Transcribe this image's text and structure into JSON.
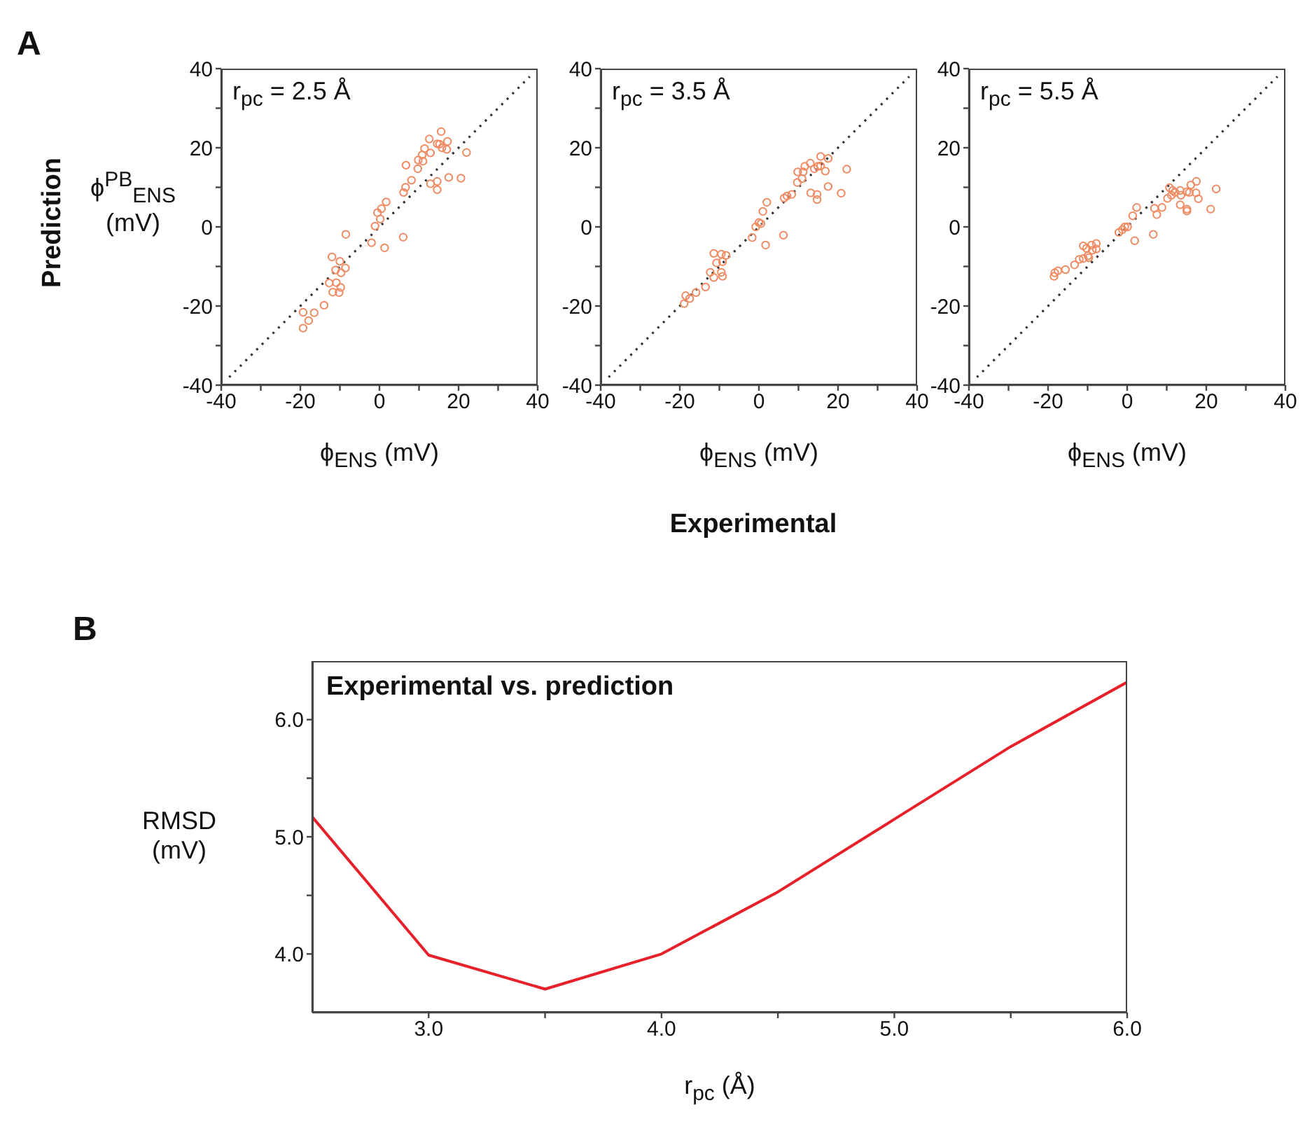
{
  "chart_data": [
    {
      "type": "scatter",
      "xlabel": "ϕ$_{ENS}$ (mV)",
      "ylabel": "ϕ$^{PB}$$_{ENS}$ (mV)",
      "annotations": [
        "A",
        "Prediction",
        "Experimental",
        "r$_{pc}$ = 2.5 Å"
      ],
      "series": [
        {
          "type": "scatter",
          "color": "#f08a62",
          "marker": "circle",
          "x": [
            15.6,
            12.6,
            14.6,
            15.2,
            17.2,
            15.8,
            17.0,
            22.0,
            11.4,
            12.9,
            10.8,
            9.8,
            11.0,
            9.7,
            6.7,
            8.1,
            17.5,
            20.6,
            14.6,
            12.9,
            14.6,
            6.6,
            6.1,
            1.7,
            0.5,
            -0.5,
            0.2,
            -1.1,
            -2.0,
            1.3,
            6.0,
            -8.5,
            -12.0,
            -10.0,
            -8.6,
            -11.1,
            -9.7,
            -10.9,
            -12.7,
            -9.8,
            -11.8,
            -10.2,
            -14.0,
            -19.3,
            -16.5,
            -17.9,
            -19.3
          ],
          "values": [
            24.1,
            22.2,
            21.0,
            20.9,
            21.6,
            20.0,
            19.6,
            18.8,
            19.8,
            18.7,
            18.2,
            16.9,
            16.6,
            14.7,
            15.6,
            11.8,
            12.5,
            12.3,
            11.5,
            10.9,
            9.4,
            10.0,
            8.7,
            6.3,
            4.6,
            3.6,
            2.0,
            0.2,
            -4.0,
            -5.3,
            -2.6,
            -1.9,
            -7.6,
            -8.7,
            -10.4,
            -10.9,
            -11.6,
            -14.1,
            -14.2,
            -15.3,
            -16.5,
            -16.6,
            -19.8,
            -21.6,
            -21.7,
            -23.7,
            -25.6
          ]
        },
        {
          "type": "line",
          "color": "#333333",
          "marker": "none",
          "line_style": "dotted",
          "x": [
            -38,
            38
          ],
          "values": [
            -38,
            38
          ]
        }
      ],
      "xlim": [
        -40,
        40
      ],
      "ylim": [
        -40,
        40
      ],
      "xticks": [
        -40,
        {
          "value": -30,
          "label": null
        },
        -20,
        {
          "value": -10,
          "label": null
        },
        0,
        {
          "value": 10,
          "label": null
        },
        20,
        {
          "value": 30,
          "label": null
        },
        40
      ],
      "yticks": [
        -40,
        {
          "value": -30,
          "label": null
        },
        -20,
        {
          "value": -10,
          "label": null
        },
        0,
        {
          "value": 10,
          "label": null
        },
        20,
        {
          "value": 30,
          "label": null
        },
        40
      ],
      "grid": false,
      "legend": false
    },
    {
      "type": "scatter",
      "xlabel": "ϕ$_{ENS}$ (mV)",
      "annotations": [
        "r$_{pc}$ = 3.5 Å"
      ],
      "series": [
        {
          "type": "scatter",
          "color": "#f08a62",
          "marker": "circle",
          "x": [
            15.6,
            17.5,
            13.0,
            11.6,
            14.9,
            15.6,
            14.0,
            22.2,
            9.8,
            11.2,
            16.8,
            9.7,
            10.9,
            17.5,
            20.8,
            13.1,
            14.7,
            14.7,
            8.3,
            7.1,
            6.4,
            2.0,
            1.0,
            0.0,
            0.5,
            -0.8,
            -1.7,
            6.2,
            1.7,
            -11.4,
            -9.5,
            -8.3,
            -10.7,
            -9.2,
            -12.3,
            -11.4,
            -9.5,
            -9.2,
            -13.5,
            -15.9,
            -18.5,
            -17.5,
            -18.9
          ],
          "values": [
            17.8,
            17.3,
            16.1,
            15.3,
            15.3,
            15.4,
            14.7,
            14.6,
            13.9,
            13.9,
            14.1,
            11.2,
            12.2,
            10.2,
            8.5,
            8.6,
            8.2,
            6.9,
            8.2,
            7.8,
            7.3,
            6.2,
            3.9,
            1.1,
            0.8,
            0.0,
            -2.7,
            -2.1,
            -4.6,
            -6.7,
            -6.9,
            -7.2,
            -9.1,
            -8.8,
            -11.5,
            -12.8,
            -11.5,
            -12.5,
            -15.2,
            -16.6,
            -17.4,
            -18.1,
            -19.4
          ]
        },
        {
          "type": "line",
          "color": "#333333",
          "marker": "none",
          "line_style": "dotted",
          "x": [
            -38,
            38
          ],
          "values": [
            -38,
            38
          ]
        }
      ],
      "xlim": [
        -40,
        40
      ],
      "ylim": [
        -40,
        40
      ],
      "xticks": [
        -40,
        {
          "value": -30,
          "label": null
        },
        -20,
        {
          "value": -10,
          "label": null
        },
        0,
        {
          "value": 10,
          "label": null
        },
        20,
        {
          "value": 30,
          "label": null
        },
        40
      ],
      "yticks": [
        -40,
        {
          "value": -30,
          "label": null
        },
        -20,
        {
          "value": -10,
          "label": null
        },
        0,
        {
          "value": 10,
          "label": null
        },
        20,
        {
          "value": 30,
          "label": null
        },
        40
      ],
      "grid": false,
      "legend": false
    },
    {
      "type": "scatter",
      "xlabel": "ϕ$_{ENS}$ (mV)",
      "annotations": [
        "r$_{pc}$ = 5.5 Å"
      ],
      "series": [
        {
          "type": "scatter",
          "color": "#f08a62",
          "marker": "circle",
          "x": [
            17.5,
            16.1,
            22.5,
            11.5,
            13.4,
            10.7,
            12.1,
            15.1,
            15.7,
            17.4,
            11.2,
            13.6,
            10.2,
            18.0,
            13.4,
            15.1,
            15.1,
            21.1,
            2.4,
            6.9,
            8.8,
            7.5,
            1.4,
            -0.6,
            0.1,
            -1.2,
            -2.1,
            6.6,
            1.9,
            -11.1,
            -9.0,
            -7.8,
            -10.3,
            -8.8,
            -7.8,
            -9.7,
            -11.1,
            -9.9,
            -12.1,
            -13.3,
            -15.6,
            -17.5,
            -18.3,
            -18.5
          ],
          "values": [
            11.5,
            10.6,
            9.6,
            9.2,
            9.2,
            9.9,
            8.7,
            8.9,
            8.7,
            8.6,
            8.0,
            8.0,
            7.2,
            7.1,
            5.6,
            4.5,
            4.0,
            4.5,
            4.9,
            4.7,
            4.9,
            3.1,
            2.8,
            0.0,
            0.0,
            -0.7,
            -1.4,
            -1.9,
            -3.5,
            -4.8,
            -4.6,
            -4.2,
            -5.4,
            -5.9,
            -5.6,
            -7.8,
            -8.0,
            -7.3,
            -8.2,
            -9.6,
            -10.8,
            -11.1,
            -11.6,
            -12.5
          ]
        },
        {
          "type": "line",
          "color": "#333333",
          "marker": "none",
          "line_style": "dotted",
          "x": [
            -38,
            38
          ],
          "values": [
            -38,
            38
          ]
        }
      ],
      "xlim": [
        -40,
        40
      ],
      "ylim": [
        -40,
        40
      ],
      "xticks": [
        -40,
        {
          "value": -30,
          "label": null
        },
        -20,
        {
          "value": -10,
          "label": null
        },
        0,
        {
          "value": 10,
          "label": null
        },
        20,
        {
          "value": 30,
          "label": null
        },
        40
      ],
      "yticks": [
        -40,
        {
          "value": -30,
          "label": null
        },
        -20,
        {
          "value": -10,
          "label": null
        },
        0,
        {
          "value": 10,
          "label": null
        },
        20,
        {
          "value": 30,
          "label": null
        },
        40
      ],
      "grid": false,
      "legend": false
    },
    {
      "type": "line",
      "title": "Experimental vs. prediction",
      "xlabel": "r$_{pc}$ (Å)",
      "ylabel": "RMSD (mV)",
      "annotations": [
        "B"
      ],
      "x": [
        2.5,
        3.0,
        3.5,
        4.0,
        4.5,
        5.0,
        5.5,
        6.0
      ],
      "series": [
        {
          "color": "#e8202a",
          "values": [
            5.17,
            3.99,
            3.7,
            4.0,
            4.53,
            5.15,
            5.77,
            6.32
          ]
        }
      ],
      "xlim": [
        2.5,
        6
      ],
      "ylim": [
        3.5,
        6.5
      ],
      "xticks": [
        {
          "value": 3,
          "label": "3.0"
        },
        {
          "value": 3.5,
          "label": null
        },
        {
          "value": 4,
          "label": "4.0"
        },
        {
          "value": 4.5,
          "label": null
        },
        {
          "value": 5,
          "label": "5.0"
        },
        {
          "value": 5.5,
          "label": null
        },
        {
          "value": 6,
          "label": "6.0"
        }
      ],
      "yticks": [
        {
          "value": 4,
          "label": "4.0"
        },
        {
          "value": 4.5,
          "label": null
        },
        {
          "value": 5,
          "label": "5.0"
        },
        {
          "value": 5.5,
          "label": null
        },
        {
          "value": 6,
          "label": "6.0"
        }
      ],
      "marker": "none",
      "grid": false,
      "legend": false
    }
  ]
}
